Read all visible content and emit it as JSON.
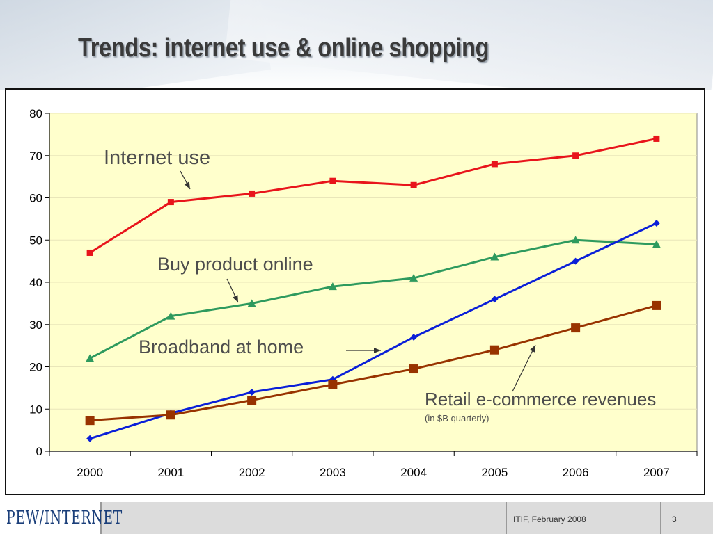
{
  "slide": {
    "title": "Trends: internet use & online shopping"
  },
  "footer": {
    "logo": "PEW/INTERNET",
    "info": "ITIF, February 2008",
    "page": "3"
  },
  "colors": {
    "plot_bg": "#ffffcc",
    "internet_use": "#e8141b",
    "buy_online": "#2e9a5e",
    "broadband": "#0a1fd8",
    "retail": "#983300"
  },
  "chart_data": {
    "type": "line",
    "categories": [
      "2000",
      "2001",
      "2002",
      "2003",
      "2004",
      "2005",
      "2006",
      "2007"
    ],
    "ylim": [
      0,
      80
    ],
    "yticks": [
      0,
      10,
      20,
      30,
      40,
      50,
      60,
      70,
      80
    ],
    "grid": true,
    "xlabel": "",
    "ylabel": "",
    "series": [
      {
        "key": "internet_use",
        "name": "Internet use",
        "marker": "square-small",
        "values": [
          47,
          59,
          61,
          64,
          63,
          68,
          70,
          74
        ]
      },
      {
        "key": "buy_online",
        "name": "Buy product online",
        "marker": "triangle",
        "values": [
          22,
          32,
          35,
          39,
          41,
          46,
          50,
          49
        ]
      },
      {
        "key": "broadband",
        "name": "Broadband at home",
        "marker": "diamond",
        "values": [
          3,
          9,
          14,
          17,
          27,
          36,
          45,
          54
        ]
      },
      {
        "key": "retail",
        "name": "Retail e-commerce revenues",
        "marker": "square-large",
        "values": [
          7.3,
          8.6,
          12.1,
          15.8,
          19.5,
          24,
          29.2,
          34.5
        ]
      }
    ],
    "annotations": {
      "internet_use": "Internet use",
      "buy_online": "Buy product online",
      "broadband": "Broadband at home",
      "retail": "Retail e-commerce revenues",
      "retail_note": "(in $B quarterly)"
    }
  }
}
